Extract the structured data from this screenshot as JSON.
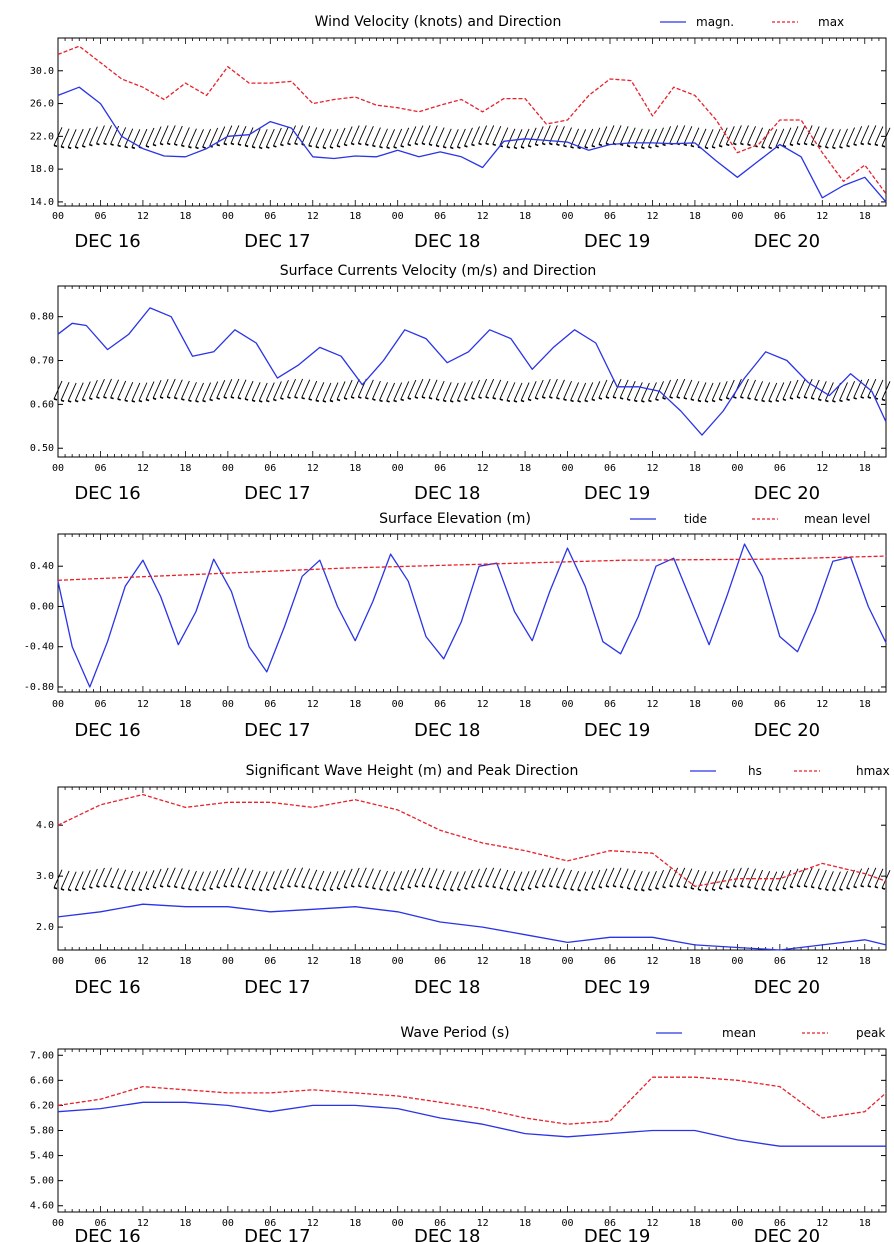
{
  "x_tick_labels": [
    "00",
    "06",
    "12",
    "18",
    "00",
    "06",
    "12",
    "18",
    "00",
    "06",
    "12",
    "18",
    "00",
    "06",
    "12",
    "18",
    "00",
    "06",
    "12",
    "18"
  ],
  "day_labels": [
    "DEC 16",
    "DEC 17",
    "DEC 18",
    "DEC 19",
    "DEC 20"
  ],
  "colors": {
    "series_primary": "#2a34e6",
    "series_secondary": "#e8212b",
    "arrows": "#000000"
  },
  "chart_data": [
    {
      "type": "line",
      "title": "Wind Velocity (knots) and Direction",
      "xlabel": "",
      "ylabel": "",
      "ylim": [
        13.5,
        34
      ],
      "yticks": [
        14.0,
        18.0,
        22.0,
        26.0,
        30.0
      ],
      "yticklabels": [
        "14.0",
        "18.0",
        "22.0",
        "26.0",
        "30.0"
      ],
      "x_unit": "hours from DEC 16 00",
      "xlim": [
        0,
        117
      ],
      "legend_position": "top-right",
      "direction_arrows": {
        "shown": true,
        "level": 22.0
      },
      "series": [
        {
          "name": "magn.",
          "style": "solid",
          "color": "#2a34e6",
          "x": [
            0,
            3,
            6,
            9,
            12,
            15,
            18,
            21,
            24,
            27,
            30,
            33,
            36,
            39,
            42,
            45,
            48,
            51,
            54,
            57,
            60,
            63,
            66,
            69,
            72,
            75,
            78,
            81,
            84,
            87,
            90,
            93,
            96,
            99,
            102,
            105,
            108,
            111,
            114,
            117
          ],
          "y": [
            27,
            28,
            26,
            22,
            20.5,
            19.6,
            19.5,
            20.5,
            22,
            22.2,
            23.8,
            23,
            19.5,
            19.3,
            19.6,
            19.5,
            20.3,
            19.5,
            20.1,
            19.5,
            18.2,
            21.4,
            21.7,
            21.5,
            21.3,
            20.3,
            21,
            21.2,
            21.2,
            21.1,
            21.2,
            19,
            17,
            19,
            21,
            19.5,
            14.5,
            16,
            17,
            14
          ]
        },
        {
          "name": "max",
          "style": "dashed",
          "color": "#e8212b",
          "x": [
            0,
            3,
            6,
            9,
            12,
            15,
            18,
            21,
            24,
            27,
            30,
            33,
            36,
            39,
            42,
            45,
            48,
            51,
            54,
            57,
            60,
            63,
            66,
            69,
            72,
            75,
            78,
            81,
            84,
            87,
            90,
            93,
            96,
            99,
            102,
            105,
            108,
            111,
            114,
            117
          ],
          "y": [
            32,
            33,
            31,
            29,
            28,
            26.5,
            28.5,
            27,
            30.5,
            28.5,
            28.5,
            28.7,
            26,
            26.5,
            26.8,
            25.8,
            25.5,
            25,
            25.8,
            26.5,
            25,
            26.6,
            26.6,
            23.5,
            24,
            27,
            29,
            28.8,
            24.5,
            28,
            27,
            24,
            20,
            21,
            24,
            24,
            20,
            16.5,
            18.5,
            15
          ]
        }
      ]
    },
    {
      "type": "line",
      "title": "Surface Currents Velocity (m/s) and Direction",
      "xlabel": "",
      "ylabel": "",
      "ylim": [
        0.48,
        0.87
      ],
      "yticks": [
        0.5,
        0.6,
        0.7,
        0.8
      ],
      "yticklabels": [
        "0.50",
        "0.60",
        "0.70",
        "0.80"
      ],
      "x_unit": "hours from DEC 16 00",
      "xlim": [
        0,
        117
      ],
      "direction_arrows": {
        "shown": true,
        "level": 0.633
      },
      "series": [
        {
          "name": "",
          "style": "solid",
          "color": "#2a34e6",
          "x": [
            0,
            2,
            4,
            7,
            10,
            13,
            16,
            19,
            22,
            25,
            28,
            31,
            34,
            37,
            40,
            43,
            46,
            49,
            52,
            55,
            58,
            61,
            64,
            67,
            70,
            73,
            76,
            79,
            82,
            85,
            88,
            91,
            94,
            97,
            100,
            103,
            106,
            109,
            112,
            115,
            117
          ],
          "y": [
            0.76,
            0.785,
            0.78,
            0.725,
            0.76,
            0.82,
            0.8,
            0.71,
            0.72,
            0.77,
            0.74,
            0.66,
            0.69,
            0.73,
            0.71,
            0.645,
            0.7,
            0.77,
            0.75,
            0.695,
            0.72,
            0.77,
            0.75,
            0.68,
            0.73,
            0.77,
            0.74,
            0.64,
            0.64,
            0.63,
            0.585,
            0.53,
            0.585,
            0.66,
            0.72,
            0.7,
            0.65,
            0.62,
            0.67,
            0.63,
            0.56
          ]
        }
      ]
    },
    {
      "type": "line",
      "title": "Surface Elevation (m)",
      "xlabel": "",
      "ylabel": "",
      "ylim": [
        -0.85,
        0.72
      ],
      "yticks": [
        -0.8,
        -0.4,
        0.0,
        0.4
      ],
      "yticklabels": [
        "-0.80",
        "-0.40",
        "0.00",
        "0.40"
      ],
      "x_unit": "hours from DEC 16 00",
      "xlim": [
        0,
        117
      ],
      "legend_position": "top-right",
      "series": [
        {
          "name": "tide",
          "style": "solid",
          "color": "#2a34e6",
          "x": [
            0,
            2,
            4.5,
            7,
            9.5,
            12,
            14.5,
            17,
            19.5,
            22,
            24.5,
            27,
            29.5,
            32,
            34.5,
            37,
            39.5,
            42,
            44.5,
            47,
            49.5,
            52,
            54.5,
            57,
            59.5,
            62,
            64.5,
            67,
            69.5,
            72,
            74.5,
            77,
            79.5,
            82,
            84.5,
            87,
            89.5,
            92,
            94.5,
            97,
            99.5,
            102,
            104.5,
            107,
            109.5,
            112,
            114.5,
            117
          ],
          "y": [
            0.25,
            -0.4,
            -0.8,
            -0.35,
            0.2,
            0.46,
            0.1,
            -0.38,
            -0.05,
            0.47,
            0.15,
            -0.4,
            -0.65,
            -0.2,
            0.3,
            0.46,
            0.0,
            -0.34,
            0.05,
            0.52,
            0.25,
            -0.3,
            -0.52,
            -0.15,
            0.4,
            0.43,
            -0.05,
            -0.34,
            0.15,
            0.58,
            0.2,
            -0.35,
            -0.47,
            -0.1,
            0.4,
            0.48,
            0.05,
            -0.38,
            0.1,
            0.62,
            0.3,
            -0.3,
            -0.45,
            -0.05,
            0.45,
            0.49,
            0.0,
            -0.36
          ]
        },
        {
          "name": "mean level",
          "style": "dashed",
          "color": "#e8212b",
          "x": [
            0,
            20,
            40,
            60,
            80,
            100,
            117
          ],
          "y": [
            0.26,
            0.32,
            0.38,
            0.42,
            0.46,
            0.47,
            0.5
          ]
        }
      ]
    },
    {
      "type": "line",
      "title": "Significant Wave Height (m) and Peak Direction",
      "xlabel": "",
      "ylabel": "",
      "ylim": [
        1.55,
        4.75
      ],
      "yticks": [
        2.0,
        3.0,
        4.0
      ],
      "yticklabels": [
        "2.0",
        "3.0",
        "4.0"
      ],
      "x_unit": "hours from DEC 16 00",
      "xlim": [
        0,
        117
      ],
      "legend_position": "top-right",
      "direction_arrows": {
        "shown": true,
        "level": 2.95
      },
      "series": [
        {
          "name": "hs",
          "style": "solid",
          "color": "#2a34e6",
          "x": [
            0,
            6,
            12,
            18,
            24,
            30,
            36,
            42,
            48,
            54,
            60,
            66,
            72,
            78,
            84,
            90,
            96,
            102,
            108,
            114,
            117
          ],
          "y": [
            2.2,
            2.3,
            2.45,
            2.4,
            2.4,
            2.3,
            2.35,
            2.4,
            2.3,
            2.1,
            2.0,
            1.85,
            1.7,
            1.8,
            1.8,
            1.65,
            1.6,
            1.55,
            1.65,
            1.75,
            1.65
          ]
        },
        {
          "name": "hmax",
          "style": "dashed",
          "color": "#e8212b",
          "x": [
            0,
            6,
            12,
            18,
            24,
            30,
            36,
            42,
            48,
            54,
            60,
            66,
            72,
            78,
            84,
            90,
            96,
            102,
            108,
            114,
            117
          ],
          "y": [
            4.0,
            4.4,
            4.6,
            4.35,
            4.45,
            4.45,
            4.35,
            4.5,
            4.3,
            3.9,
            3.65,
            3.5,
            3.3,
            3.5,
            3.45,
            2.8,
            2.95,
            2.95,
            3.25,
            3.05,
            2.9
          ]
        }
      ]
    },
    {
      "type": "line",
      "title": "Wave Period (s)",
      "xlabel": "",
      "ylabel": "",
      "ylim": [
        4.5,
        7.1
      ],
      "yticks": [
        4.6,
        5.0,
        5.4,
        5.8,
        6.2,
        6.6,
        7.0
      ],
      "yticklabels": [
        "4.60",
        "5.00",
        "5.40",
        "5.80",
        "6.20",
        "6.60",
        "7.00"
      ],
      "x_unit": "hours from DEC 16 00",
      "xlim": [
        0,
        117
      ],
      "legend_position": "top-right",
      "series": [
        {
          "name": "mean",
          "style": "solid",
          "color": "#2a34e6",
          "x": [
            0,
            6,
            12,
            18,
            24,
            30,
            36,
            42,
            48,
            54,
            60,
            66,
            72,
            78,
            84,
            90,
            96,
            102,
            108,
            114,
            117
          ],
          "y": [
            6.1,
            6.15,
            6.25,
            6.25,
            6.2,
            6.1,
            6.2,
            6.2,
            6.15,
            6.0,
            5.9,
            5.75,
            5.7,
            5.75,
            5.8,
            5.8,
            5.65,
            5.55,
            5.55,
            5.55,
            5.55
          ]
        },
        {
          "name": "peak",
          "style": "dashed",
          "color": "#e8212b",
          "x": [
            0,
            6,
            12,
            18,
            24,
            30,
            36,
            42,
            48,
            54,
            60,
            66,
            72,
            78,
            84,
            90,
            96,
            102,
            108,
            114,
            117
          ],
          "y": [
            6.2,
            6.3,
            6.5,
            6.45,
            6.4,
            6.4,
            6.45,
            6.4,
            6.35,
            6.25,
            6.15,
            6.0,
            5.9,
            5.95,
            6.65,
            6.65,
            6.6,
            6.5,
            6.0,
            6.1,
            6.4
          ]
        }
      ]
    }
  ]
}
